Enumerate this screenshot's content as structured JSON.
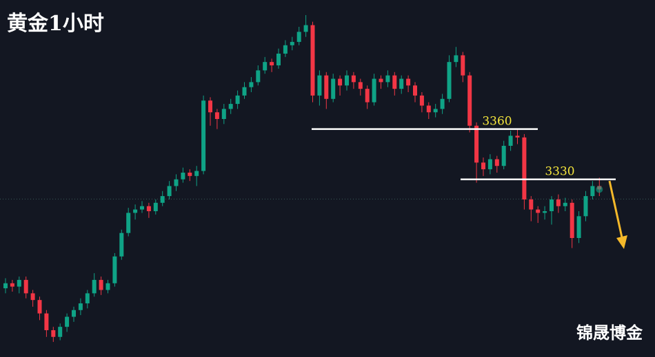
{
  "chart_data": {
    "type": "candlestick",
    "title": "黄金1小时",
    "watermark": "锦晟博金",
    "up_color": "#0fa386",
    "down_color": "#f23645",
    "level_color": "#ffffff",
    "level_label_color": "#f5e63c",
    "ylim": [
      3224,
      3437
    ],
    "levels": [
      3360,
      3330
    ],
    "open": [
      3265,
      3268,
      3266,
      3270,
      3262,
      3258,
      3250,
      3240,
      3236,
      3242,
      3248,
      3252,
      3256,
      3262,
      3270,
      3264,
      3268,
      3284,
      3298,
      3310,
      3312,
      3314,
      3311,
      3316,
      3320,
      3326,
      3330,
      3334,
      3332,
      3335,
      3377,
      3370,
      3366,
      3372,
      3375,
      3380,
      3385,
      3388,
      3395,
      3400,
      3398,
      3405,
      3410,
      3412,
      3418,
      3422,
      3380,
      3392,
      3378,
      3390,
      3386,
      3392,
      3388,
      3384,
      3376,
      3390,
      3388,
      3392,
      3384,
      3390,
      3386,
      3380,
      3374,
      3370,
      3372,
      3378,
      3400,
      3404,
      3392,
      3362,
      3340,
      3336,
      3342,
      3338,
      3350,
      3356,
      3355,
      3318,
      3312,
      3310,
      3311,
      3318,
      3314,
      3316,
      3295,
      3308,
      3320,
      3326
    ],
    "close": [
      3268,
      3266,
      3270,
      3262,
      3258,
      3250,
      3240,
      3236,
      3242,
      3248,
      3252,
      3256,
      3262,
      3270,
      3264,
      3268,
      3284,
      3298,
      3310,
      3312,
      3314,
      3311,
      3316,
      3320,
      3326,
      3330,
      3334,
      3332,
      3335,
      3377,
      3370,
      3366,
      3372,
      3375,
      3380,
      3385,
      3388,
      3395,
      3400,
      3398,
      3405,
      3410,
      3412,
      3418,
      3422,
      3380,
      3392,
      3378,
      3390,
      3386,
      3392,
      3388,
      3384,
      3376,
      3390,
      3388,
      3392,
      3384,
      3390,
      3386,
      3380,
      3374,
      3370,
      3372,
      3378,
      3400,
      3404,
      3392,
      3362,
      3340,
      3336,
      3342,
      3338,
      3350,
      3356,
      3355,
      3318,
      3312,
      3310,
      3311,
      3318,
      3314,
      3316,
      3295,
      3308,
      3320,
      3326,
      3324
    ],
    "high": [
      3271,
      3270,
      3272,
      3272,
      3264,
      3260,
      3252,
      3242,
      3244,
      3250,
      3254,
      3259,
      3264,
      3274,
      3272,
      3270,
      3286,
      3300,
      3313,
      3315,
      3317,
      3316,
      3318,
      3323,
      3329,
      3333,
      3337,
      3336,
      3338,
      3380,
      3379,
      3372,
      3375,
      3378,
      3383,
      3388,
      3391,
      3398,
      3403,
      3402,
      3408,
      3413,
      3415,
      3421,
      3428,
      3424,
      3395,
      3394,
      3393,
      3392,
      3395,
      3394,
      3390,
      3386,
      3393,
      3392,
      3395,
      3394,
      3392,
      3392,
      3388,
      3382,
      3376,
      3375,
      3381,
      3404,
      3409,
      3406,
      3394,
      3364,
      3343,
      3345,
      3344,
      3353,
      3359,
      3360,
      3357,
      3320,
      3314,
      3314,
      3320,
      3321,
      3319,
      3318,
      3311,
      3323,
      3329,
      3331
    ],
    "low": [
      3262,
      3263,
      3262,
      3259,
      3254,
      3246,
      3236,
      3233,
      3234,
      3239,
      3245,
      3249,
      3253,
      3260,
      3261,
      3262,
      3266,
      3282,
      3296,
      3306,
      3310,
      3307,
      3309,
      3314,
      3318,
      3323,
      3328,
      3329,
      3326,
      3333,
      3362,
      3360,
      3363,
      3369,
      3372,
      3378,
      3382,
      3386,
      3393,
      3394,
      3396,
      3403,
      3407,
      3410,
      3415,
      3376,
      3374,
      3372,
      3376,
      3380,
      3383,
      3384,
      3380,
      3372,
      3374,
      3384,
      3385,
      3380,
      3381,
      3382,
      3376,
      3370,
      3366,
      3367,
      3369,
      3376,
      3397,
      3388,
      3358,
      3328,
      3332,
      3333,
      3334,
      3336,
      3347,
      3351,
      3312,
      3305,
      3304,
      3306,
      3303,
      3310,
      3311,
      3289,
      3292,
      3305,
      3318,
      3320
    ]
  }
}
